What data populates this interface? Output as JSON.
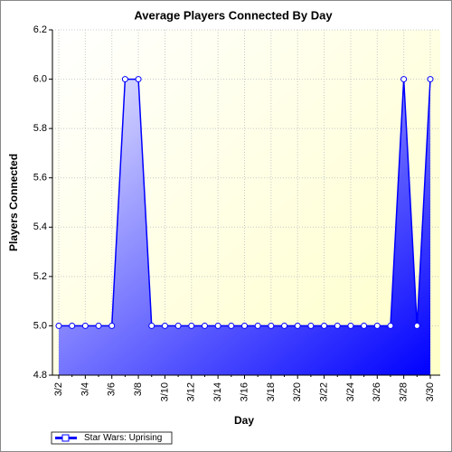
{
  "chart_data": {
    "type": "area",
    "title": "Average Players Connected By Day",
    "x_label": "Day",
    "y_label": "Players Connected",
    "categories": [
      "3/2",
      null,
      "3/4",
      null,
      "3/6",
      null,
      "3/8",
      null,
      "3/10",
      null,
      "3/12",
      null,
      "3/14",
      null,
      "3/16",
      null,
      "3/18",
      null,
      "3/20",
      null,
      "3/22",
      null,
      "3/24",
      null,
      "3/26",
      null,
      "3/28",
      null,
      "3/30"
    ],
    "series": [
      {
        "name": "Star Wars: Uprising",
        "color": "#0000ff",
        "values": [
          5,
          5,
          5,
          5,
          5,
          6,
          6,
          5,
          5,
          5,
          5,
          5,
          5,
          5,
          5,
          5,
          5,
          5,
          5,
          5,
          5,
          5,
          5,
          5,
          5,
          5,
          6,
          5,
          6
        ]
      }
    ],
    "ylim": [
      4.8,
      6.2
    ],
    "yticks": [
      4.8,
      {
        "value": 5,
        "label": "5.0"
      },
      5.2,
      5.4,
      5.6,
      5.8,
      {
        "value": 6,
        "label": "6.0"
      },
      6.2
    ],
    "grid": true,
    "legend": "bottom-left"
  }
}
